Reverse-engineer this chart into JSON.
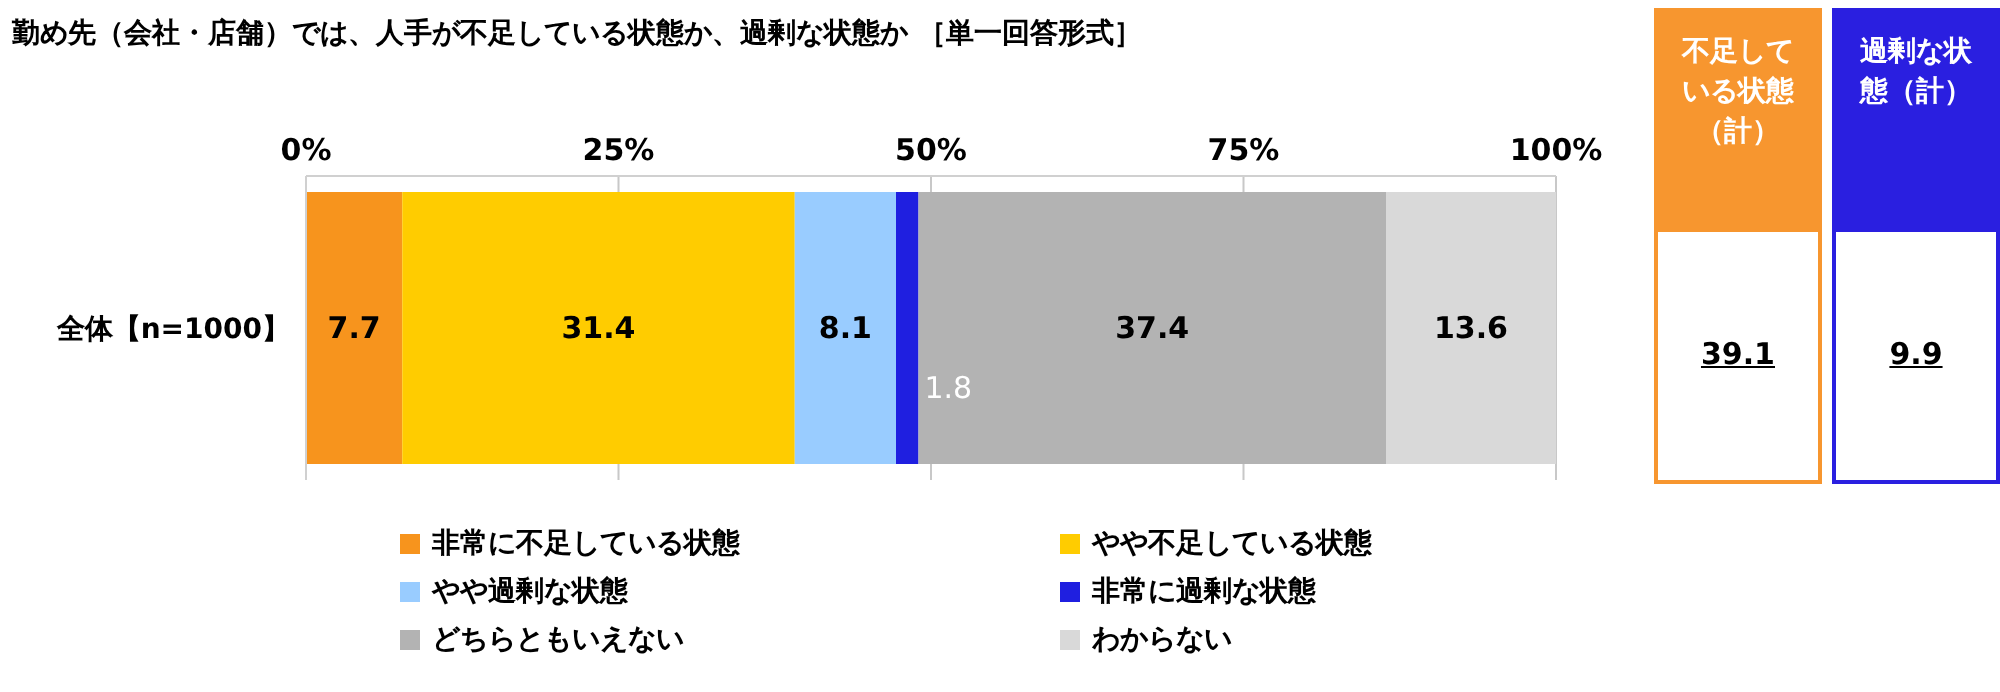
{
  "chart_data": {
    "type": "bar",
    "orientation": "horizontal",
    "stacked": true,
    "title": "勤め先（会社・店舗）では、人手が不足している状態か、過剰な状態か ［単一回答形式］",
    "categories": [
      "全体【n=1000】"
    ],
    "series": [
      {
        "name": "非常に不足している状態",
        "color": "#f7941d",
        "values": [
          7.7
        ]
      },
      {
        "name": "やや不足している状態",
        "color": "#ffcc00",
        "values": [
          31.4
        ]
      },
      {
        "name": "やや過剰な状態",
        "color": "#99ccff",
        "values": [
          8.1
        ]
      },
      {
        "name": "非常に過剰な状態",
        "color": "#1f1fe0",
        "values": [
          1.8
        ]
      },
      {
        "name": "どちらともいえない",
        "color": "#b3b3b3",
        "values": [
          37.4
        ]
      },
      {
        "name": "わからない",
        "color": "#d9d9d9",
        "values": [
          13.6
        ]
      }
    ],
    "xlim": [
      0,
      100
    ],
    "xticks": [
      {
        "value": 0,
        "label": "0%"
      },
      {
        "value": 25,
        "label": "25%"
      },
      {
        "value": 50,
        "label": "50%"
      },
      {
        "value": 75,
        "label": "75%"
      },
      {
        "value": 100,
        "label": "100%"
      }
    ],
    "grid": "x",
    "legend": "bottom",
    "data_labels": true,
    "annotations": [
      "不足している状態（計）",
      "39.1",
      "過剰な状態（計）",
      "9.9"
    ]
  }
}
